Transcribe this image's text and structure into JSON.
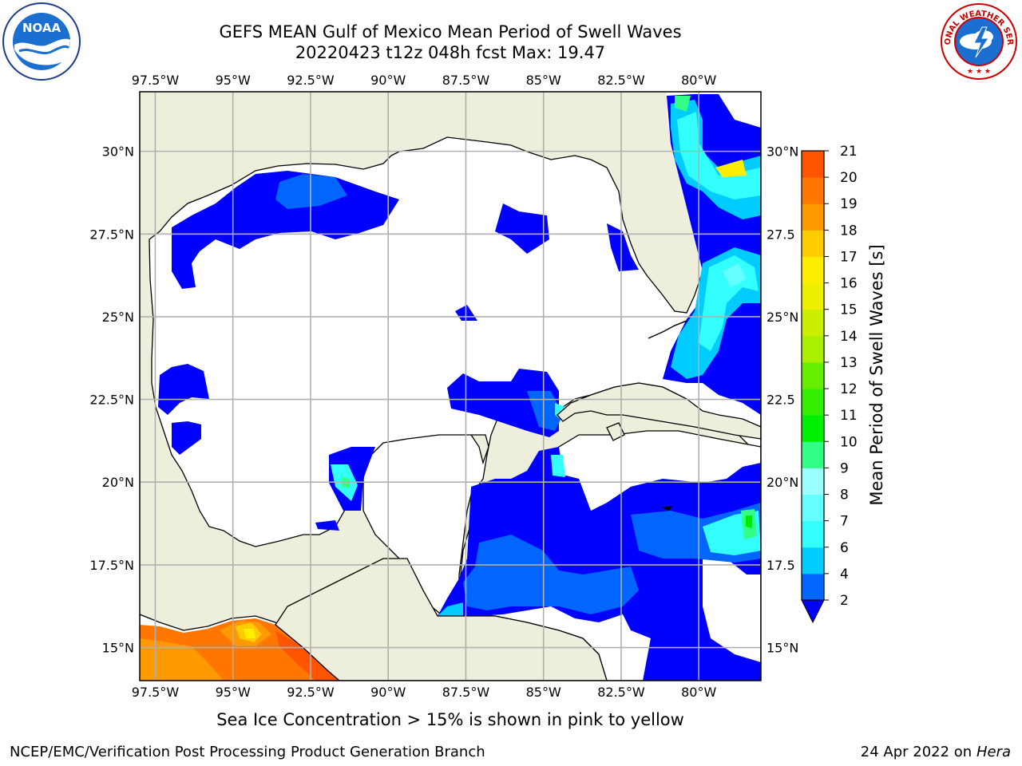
{
  "title": {
    "line1": "GEFS MEAN Gulf of Mexico Mean Period of Swell Waves",
    "line2": "20220423 t12z 048h fcst   Max: 19.47"
  },
  "logos": {
    "left": {
      "name": "noaa-logo",
      "text": "NOAA"
    },
    "right": {
      "name": "nws-logo",
      "text": "NATIONAL WEATHER SERVICE"
    }
  },
  "map": {
    "lon_ticks": [
      "97.5°W",
      "95°W",
      "92.5°W",
      "90°W",
      "87.5°W",
      "85°W",
      "82.5°W",
      "80°W"
    ],
    "lat_ticks_left": [
      "30°N",
      "27.5°N",
      "25°N",
      "22.5°N",
      "20°N",
      "17.5°N",
      "15°N"
    ],
    "lat_ticks_right": [
      "30°N",
      "27.5",
      "25°N",
      "22.5",
      "20°N",
      "17.5",
      "15°N"
    ],
    "lon_range": [
      -98,
      -78
    ],
    "lat_range": [
      14,
      31.8
    ],
    "colors": {
      "land": "#eeeedd",
      "ocean": "#ffffff",
      "grid": "#b0b0b0",
      "coast": "#000000"
    }
  },
  "colorbar": {
    "label": "Mean Period of Swell Waves [s]",
    "levels": [
      "2",
      "4",
      "6",
      "7",
      "8",
      "9",
      "10",
      "11",
      "12",
      "13",
      "14",
      "15",
      "16",
      "17",
      "18",
      "19",
      "20",
      "21"
    ],
    "colors": [
      "#0066ff",
      "#00ccff",
      "#33ffff",
      "#66ffff",
      "#99ffff",
      "#33ff88",
      "#00ee00",
      "#33ee00",
      "#66ee00",
      "#aaee00",
      "#ccee00",
      "#eeee00",
      "#ffee00",
      "#ffcc00",
      "#ff9900",
      "#ff7700",
      "#ff5500",
      "#ff2200",
      "#ff0000"
    ],
    "extend_color": "#0000ff"
  },
  "footer": {
    "sea_ice_note": "Sea Ice Concentration > 15% is shown in pink to yellow",
    "branch": "NCEP/EMC/Verification Post Processing Product Generation Branch",
    "date": "24 Apr 2022 on",
    "machine": "Hera"
  }
}
